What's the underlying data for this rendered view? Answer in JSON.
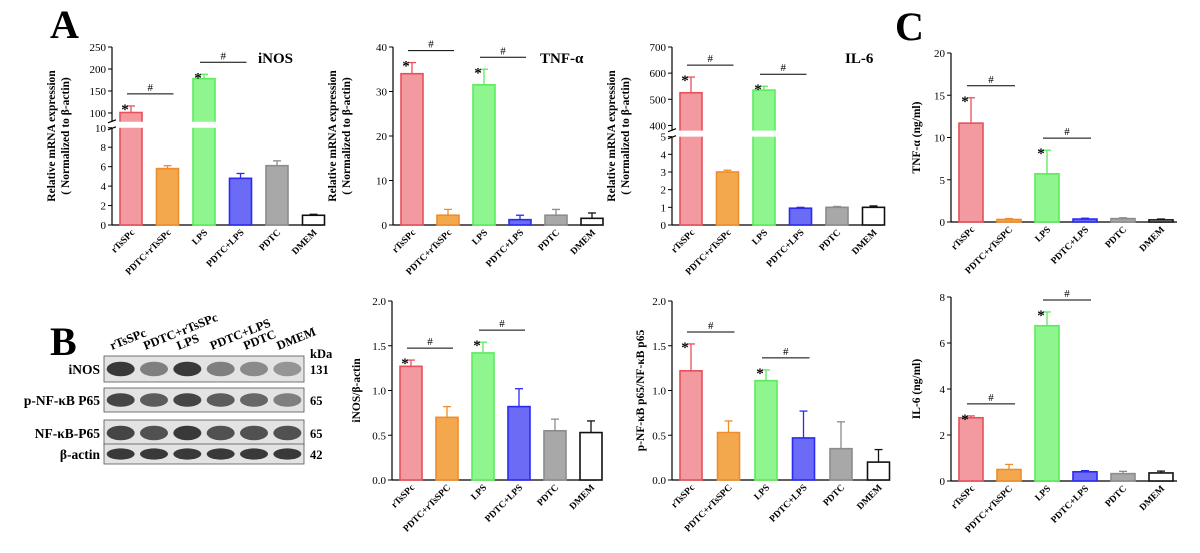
{
  "panel_labels": {
    "a": "A",
    "b": "B",
    "c": "C"
  },
  "colors": {
    "red": "#e8505b",
    "orange": "#ef8c2d",
    "green": "#5cec5c",
    "blue": "#2b2bf0",
    "gray": "#8c8c8c",
    "black": "#111111",
    "red_fill": "#f29aa0",
    "orange_fill": "#f4a84e",
    "green_fill": "#8ff58f",
    "blue_fill": "#6b6bf5",
    "gray_fill": "#a8a8a8",
    "black_fill": "#ffffff"
  },
  "chart_data": [
    {
      "id": "inos_mrna",
      "type": "bar",
      "title": "iNOS",
      "ylabel_line1": "Relative mRNA expression",
      "ylabel_line2": "( Normalized to β-actin)",
      "categories": [
        "rTsSPc",
        "PDTC+rTsSPc",
        "LPS",
        "PDTC+LPS",
        "PDTC",
        "DMEM"
      ],
      "values": [
        101,
        5.8,
        178,
        4.8,
        6.1,
        1.0
      ],
      "errors": [
        15,
        0.3,
        10,
        0.5,
        0.5,
        0.1
      ],
      "broken_axis": true,
      "upper_ylim": [
        80,
        250
      ],
      "upper_ticks": [
        "100",
        "150",
        "200",
        "250"
      ],
      "upper_tick_values": [
        100,
        150,
        200,
        250
      ],
      "lower_ylim": [
        0,
        10
      ],
      "lower_ticks": [
        "0",
        "2",
        "4",
        "6",
        "8",
        "10"
      ],
      "lower_tick_values": [
        0,
        2,
        4,
        6,
        8,
        10
      ],
      "stars": [
        "*",
        "",
        "*",
        "",
        "",
        ""
      ],
      "sig_brackets": [
        {
          "from": 0,
          "to": 1,
          "label": "#"
        },
        {
          "from": 2,
          "to": 3,
          "label": "#"
        }
      ]
    },
    {
      "id": "tnf_mrna",
      "type": "bar",
      "title": "TNF-α",
      "ylabel_line1": "Relative mRNA expression",
      "ylabel_line2": "( Normalized to β-actin)",
      "categories": [
        "rTsSPc",
        "PDTC+rTsSPc",
        "LPS",
        "PDTC+LPS",
        "PDTC",
        "DMEM"
      ],
      "values": [
        34,
        2.2,
        31.5,
        1.2,
        2.2,
        1.5
      ],
      "errors": [
        2.5,
        1.3,
        3.5,
        1.0,
        1.3,
        1.2
      ],
      "broken_axis": false,
      "ylim": [
        0,
        40
      ],
      "ticks": [
        "0",
        "10",
        "20",
        "30",
        "40"
      ],
      "tick_values": [
        0,
        10,
        20,
        30,
        40
      ],
      "stars": [
        "*",
        "",
        "*",
        "",
        "",
        ""
      ],
      "sig_brackets": [
        {
          "from": 0,
          "to": 1,
          "label": "#"
        },
        {
          "from": 2,
          "to": 3,
          "label": "#"
        }
      ]
    },
    {
      "id": "il6_mrna",
      "type": "bar",
      "title": "IL-6",
      "ylabel_line1": "Relative mRNA expression",
      "ylabel_line2": "( Normalized to β-actin)",
      "categories": [
        "rTsSPc",
        "PDTC+rTsSPc",
        "LPS",
        "PDTC+LPS",
        "PDTC",
        "DMEM"
      ],
      "values": [
        525,
        3.0,
        535,
        0.95,
        1.0,
        1.0
      ],
      "errors": [
        60,
        0.1,
        15,
        0.05,
        0.05,
        0.08
      ],
      "broken_axis": true,
      "upper_ylim": [
        380,
        700
      ],
      "upper_ticks": [
        "400",
        "500",
        "600",
        "700"
      ],
      "upper_tick_values": [
        400,
        500,
        600,
        700
      ],
      "lower_ylim": [
        0,
        5
      ],
      "lower_ticks": [
        "0",
        "1",
        "2",
        "3",
        "4",
        "5"
      ],
      "lower_tick_values": [
        0,
        1,
        2,
        3,
        4,
        5
      ],
      "stars": [
        "*",
        "",
        "*",
        "",
        "",
        ""
      ],
      "sig_brackets": [
        {
          "from": 0,
          "to": 1,
          "label": "#"
        },
        {
          "from": 2,
          "to": 3,
          "label": "#"
        }
      ]
    },
    {
      "id": "tnf_protein",
      "type": "bar",
      "title": "",
      "ylabel_line1": "TNF-α (ng/ml)",
      "ylabel_line2": "",
      "categories": [
        "rTsSPc",
        "PDTC+rTsSPC",
        "LPS",
        "PDTC+LPS",
        "PDTC",
        "DMEM"
      ],
      "values": [
        11.7,
        0.3,
        5.7,
        0.35,
        0.4,
        0.25
      ],
      "errors": [
        3.0,
        0.1,
        2.8,
        0.1,
        0.1,
        0.1
      ],
      "broken_axis": false,
      "ylim": [
        0,
        20
      ],
      "ticks": [
        "0",
        "5",
        "10",
        "15",
        "20"
      ],
      "tick_values": [
        0,
        5,
        10,
        15,
        20
      ],
      "stars": [
        "*",
        "",
        "*",
        "",
        "",
        ""
      ],
      "sig_brackets": [
        {
          "from": 0,
          "to": 1,
          "label": "#"
        },
        {
          "from": 2,
          "to": 3,
          "label": "#"
        }
      ]
    },
    {
      "id": "inos_wb",
      "type": "bar",
      "title": "",
      "ylabel_line1": "iNOS/β-actin",
      "ylabel_line2": "",
      "categories": [
        "rTsSPc",
        "PDTC+rTsSPC",
        "LPS",
        "PDTC+LPS",
        "PDTC",
        "DMEM"
      ],
      "values": [
        1.27,
        0.7,
        1.42,
        0.82,
        0.55,
        0.53
      ],
      "errors": [
        0.07,
        0.12,
        0.12,
        0.2,
        0.13,
        0.13
      ],
      "broken_axis": false,
      "ylim": [
        0,
        2.0
      ],
      "ticks": [
        "0.0",
        "0.5",
        "1.0",
        "1.5",
        "2.0"
      ],
      "tick_values": [
        0,
        0.5,
        1.0,
        1.5,
        2.0
      ],
      "stars": [
        "*",
        "",
        "*",
        "",
        "",
        ""
      ],
      "sig_brackets": [
        {
          "from": 0,
          "to": 1,
          "label": "#"
        },
        {
          "from": 2,
          "to": 3,
          "label": "#"
        }
      ]
    },
    {
      "id": "p65_wb",
      "type": "bar",
      "title": "",
      "ylabel_line1": "p-NF-κB p65/NF-κB p65",
      "ylabel_line2": "",
      "categories": [
        "rTsSPc",
        "PDTC+rTsSPC",
        "LPS",
        "PDTC+LPS",
        "PDTC",
        "DMEM"
      ],
      "values": [
        1.22,
        0.53,
        1.11,
        0.47,
        0.35,
        0.2
      ],
      "errors": [
        0.3,
        0.13,
        0.12,
        0.3,
        0.3,
        0.14
      ],
      "broken_axis": false,
      "ylim": [
        0,
        2.0
      ],
      "ticks": [
        "0.0",
        "0.5",
        "1.0",
        "1.5",
        "2.0"
      ],
      "tick_values": [
        0,
        0.5,
        1.0,
        1.5,
        2.0
      ],
      "stars": [
        "*",
        "",
        "*",
        "",
        "",
        ""
      ],
      "sig_brackets": [
        {
          "from": 0,
          "to": 1,
          "label": "#"
        },
        {
          "from": 2,
          "to": 3,
          "label": "#"
        }
      ]
    },
    {
      "id": "il6_protein",
      "type": "bar",
      "title": "",
      "ylabel_line1": "IL-6 (ng/ml)",
      "ylabel_line2": "",
      "categories": [
        "rTsSPc",
        "PDTC+rTsSPC",
        "LPS",
        "PDTC+LPS",
        "PDTC",
        "DMEM"
      ],
      "values": [
        2.75,
        0.5,
        6.75,
        0.4,
        0.32,
        0.35
      ],
      "errors": [
        0.08,
        0.22,
        0.6,
        0.05,
        0.1,
        0.08
      ],
      "broken_axis": false,
      "ylim": [
        0,
        8
      ],
      "ticks": [
        "0",
        "2",
        "4",
        "6",
        "8"
      ],
      "tick_values": [
        0,
        2,
        4,
        6,
        8
      ],
      "stars": [
        "*",
        "",
        "*",
        "",
        "",
        ""
      ],
      "sig_brackets": [
        {
          "from": 0,
          "to": 1,
          "label": "#"
        },
        {
          "from": 2,
          "to": 3,
          "label": "#"
        }
      ]
    }
  ],
  "western_blot": {
    "lanes": [
      "rTsSPc",
      "PDTC+rTsSPc",
      "LPS",
      "PDTC+LPS",
      "PDTC",
      "DMEM"
    ],
    "kda_label": "kDa",
    "rows": [
      {
        "protein": "iNOS",
        "kda": "131",
        "intensity": [
          0.85,
          0.55,
          0.85,
          0.55,
          0.5,
          0.45
        ]
      },
      {
        "protein": "p-NF-κB P65",
        "kda": "65",
        "intensity": [
          0.8,
          0.7,
          0.8,
          0.7,
          0.65,
          0.55
        ]
      },
      {
        "protein": "NF-κB-P65",
        "kda": "65",
        "intensity": [
          0.8,
          0.75,
          0.85,
          0.75,
          0.75,
          0.75
        ]
      },
      {
        "protein": "β-actin",
        "kda": "42",
        "intensity": [
          0.85,
          0.85,
          0.85,
          0.85,
          0.85,
          0.85
        ]
      }
    ]
  }
}
